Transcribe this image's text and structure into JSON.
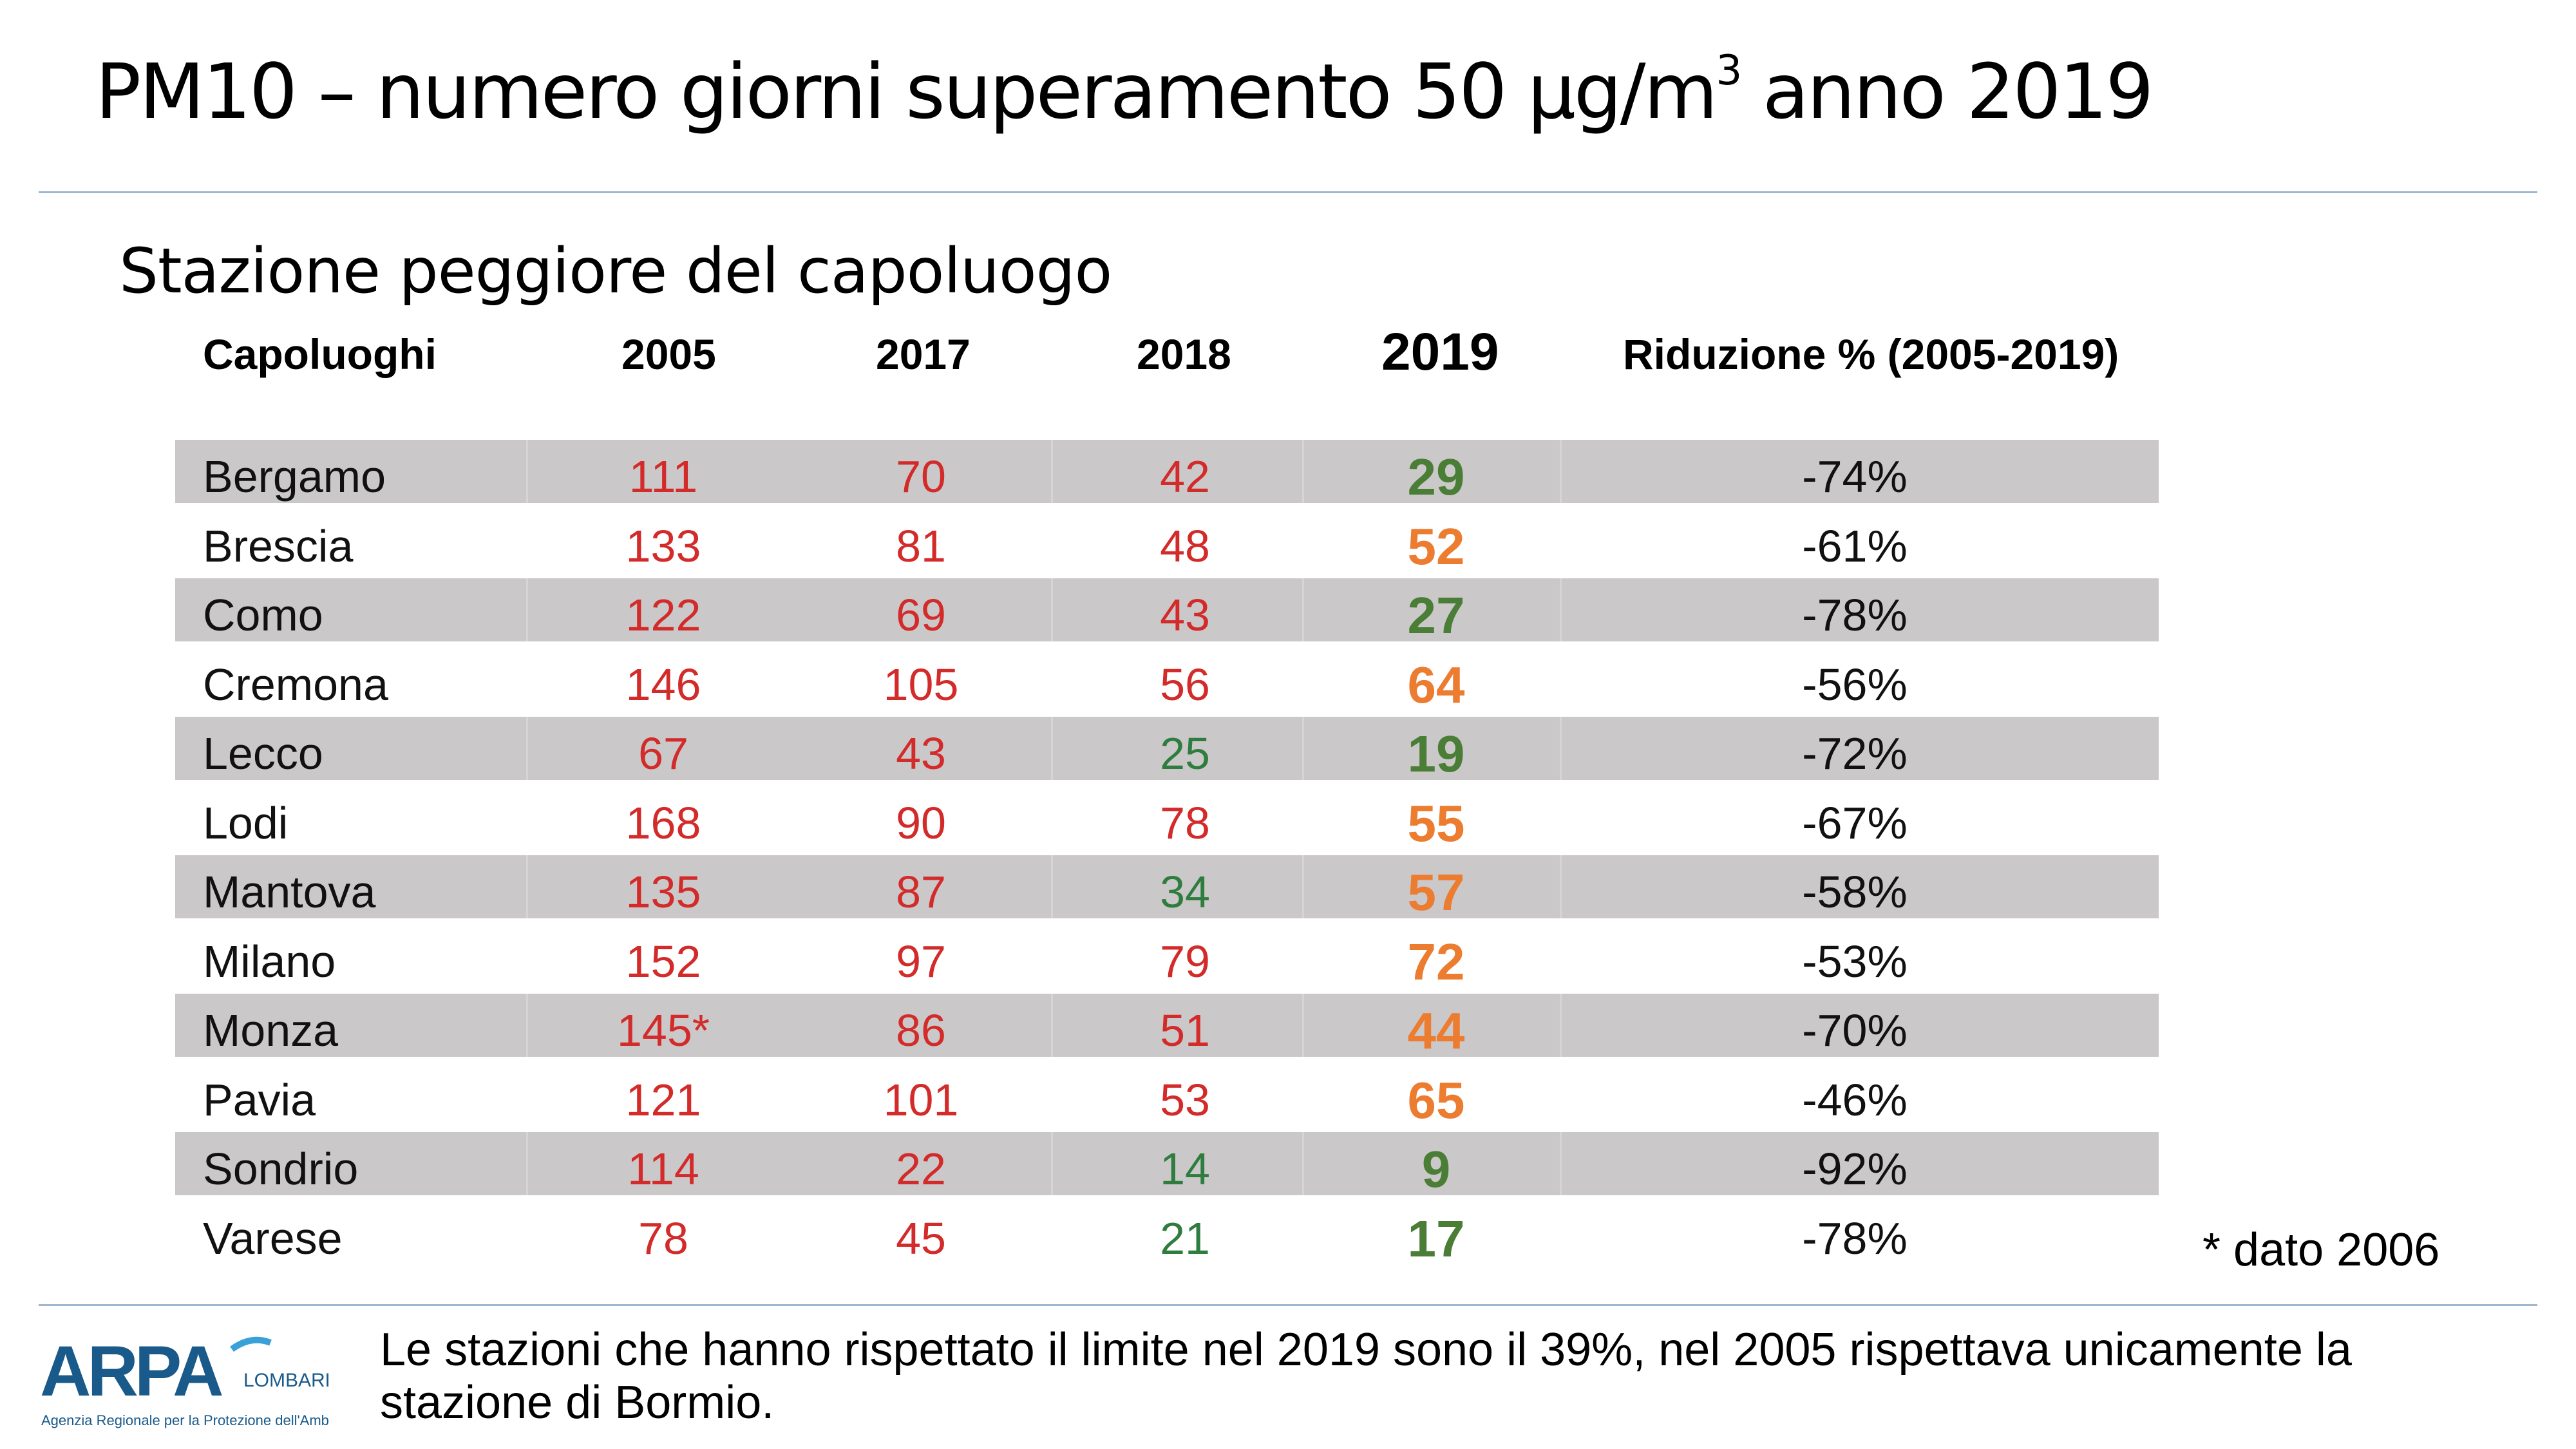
{
  "title": {
    "text": "PM10 – numero giorni superamento 50 µg/m",
    "sup": "3",
    "suffix": " anno 2019"
  },
  "subtitle": "Stazione peggiore del capoluogo",
  "table": {
    "headers": {
      "capoluoghi": "Capoluoghi",
      "y2005": "2005",
      "y2017": "2017",
      "y2018": "2018",
      "y2019": "2019",
      "riduzione": "Riduzione % (2005-2019)"
    },
    "rows": [
      {
        "name": "Bergamo",
        "y2005": "111",
        "y2017": "70",
        "y2018": "42",
        "y2019": "29",
        "riduzione": "-74%",
        "c2018": "red",
        "c2019": "green"
      },
      {
        "name": "Brescia",
        "y2005": "133",
        "y2017": "81",
        "y2018": "48",
        "y2019": "52",
        "riduzione": "-61%",
        "c2018": "red",
        "c2019": "orange"
      },
      {
        "name": "Como",
        "y2005": "122",
        "y2017": "69",
        "y2018": "43",
        "y2019": "27",
        "riduzione": "-78%",
        "c2018": "red",
        "c2019": "green"
      },
      {
        "name": "Cremona",
        "y2005": "146",
        "y2017": "105",
        "y2018": "56",
        "y2019": "64",
        "riduzione": "-56%",
        "c2018": "red",
        "c2019": "orange"
      },
      {
        "name": "Lecco",
        "y2005": "67",
        "y2017": "43",
        "y2018": "25",
        "y2019": "19",
        "riduzione": "-72%",
        "c2018": "green",
        "c2019": "green"
      },
      {
        "name": "Lodi",
        "y2005": "168",
        "y2017": "90",
        "y2018": "78",
        "y2019": "55",
        "riduzione": "-67%",
        "c2018": "red",
        "c2019": "orange"
      },
      {
        "name": "Mantova",
        "y2005": "135",
        "y2017": "87",
        "y2018": "34",
        "y2019": "57",
        "riduzione": "-58%",
        "c2018": "green",
        "c2019": "orange"
      },
      {
        "name": "Milano",
        "y2005": "152",
        "y2017": "97",
        "y2018": "79",
        "y2019": "72",
        "riduzione": "-53%",
        "c2018": "red",
        "c2019": "orange"
      },
      {
        "name": "Monza",
        "y2005": "145*",
        "y2017": "86",
        "y2018": "51",
        "y2019": "44",
        "riduzione": "-70%",
        "c2018": "red",
        "c2019": "orange"
      },
      {
        "name": "Pavia",
        "y2005": "121",
        "y2017": "101",
        "y2018": "53",
        "y2019": "65",
        "riduzione": "-46%",
        "c2018": "red",
        "c2019": "orange"
      },
      {
        "name": "Sondrio",
        "y2005": "114",
        "y2017": "22",
        "y2018": "14",
        "y2019": "9",
        "riduzione": "-92%",
        "c2018": "green",
        "c2019": "green"
      },
      {
        "name": "Varese",
        "y2005": "78",
        "y2017": "45",
        "y2018": "21",
        "y2019": "17",
        "riduzione": "-78%",
        "c2018": "green",
        "c2019": "green"
      }
    ]
  },
  "note": "* dato 2006",
  "footer": "Le stazioni che hanno rispettato il limite nel 2019 sono il 39%, nel 2005 rispettava  unicamente la stazione di Bormio.",
  "logo": {
    "mark": "ARPA",
    "region": "LOMBARDIA",
    "tagline": "Agenzia Regionale per la Protezione dell'Ambiente"
  },
  "colors": {
    "red": "#d32a2a",
    "green": "#2e7d3f",
    "green2019": "#4a7d35",
    "orange2019": "#ec7c30",
    "band": "#cbc8c9",
    "rule": "#9fb6cf",
    "logo": "#1a5a8a"
  }
}
